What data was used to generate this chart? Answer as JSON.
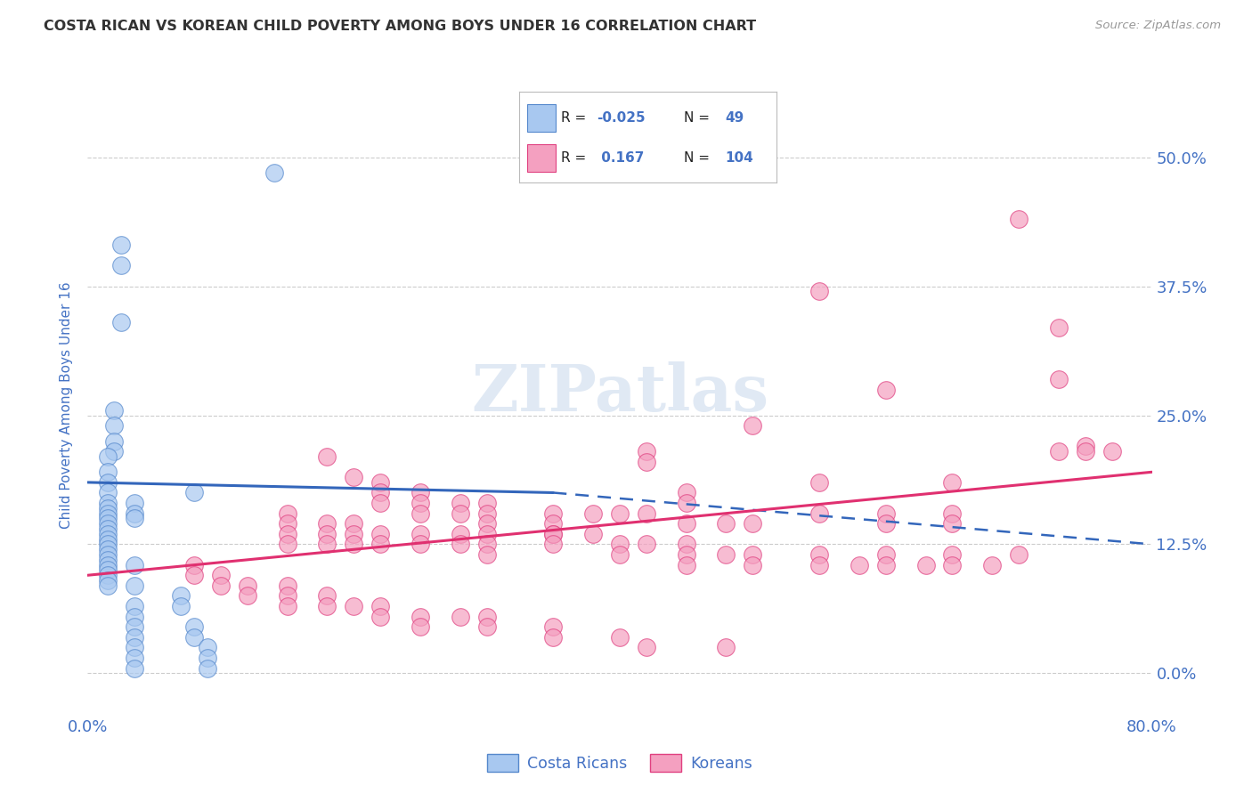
{
  "title": "COSTA RICAN VS KOREAN CHILD POVERTY AMONG BOYS UNDER 16 CORRELATION CHART",
  "source": "Source: ZipAtlas.com",
  "ylabel": "Child Poverty Among Boys Under 16",
  "ytick_labels": [
    "0.0%",
    "12.5%",
    "25.0%",
    "37.5%",
    "50.0%"
  ],
  "ytick_values": [
    0.0,
    0.125,
    0.25,
    0.375,
    0.5
  ],
  "xlim": [
    0.0,
    0.8
  ],
  "ylim": [
    -0.04,
    0.56
  ],
  "watermark": "ZIPatlas",
  "legend_blue_label": "Costa Ricans",
  "legend_pink_label": "Koreans",
  "blue_color": "#A8C8F0",
  "pink_color": "#F4A0C0",
  "blue_edge_color": "#5588CC",
  "pink_edge_color": "#E04080",
  "blue_line_color": "#3366BB",
  "pink_line_color": "#E03070",
  "blue_scatter": [
    [
      0.14,
      0.485
    ],
    [
      0.025,
      0.415
    ],
    [
      0.025,
      0.395
    ],
    [
      0.025,
      0.34
    ],
    [
      0.02,
      0.255
    ],
    [
      0.02,
      0.24
    ],
    [
      0.02,
      0.225
    ],
    [
      0.02,
      0.215
    ],
    [
      0.015,
      0.21
    ],
    [
      0.015,
      0.195
    ],
    [
      0.015,
      0.185
    ],
    [
      0.015,
      0.175
    ],
    [
      0.015,
      0.165
    ],
    [
      0.015,
      0.16
    ],
    [
      0.015,
      0.155
    ],
    [
      0.015,
      0.15
    ],
    [
      0.015,
      0.145
    ],
    [
      0.015,
      0.14
    ],
    [
      0.015,
      0.135
    ],
    [
      0.015,
      0.13
    ],
    [
      0.015,
      0.125
    ],
    [
      0.015,
      0.12
    ],
    [
      0.015,
      0.115
    ],
    [
      0.015,
      0.11
    ],
    [
      0.015,
      0.105
    ],
    [
      0.015,
      0.1
    ],
    [
      0.015,
      0.095
    ],
    [
      0.015,
      0.09
    ],
    [
      0.015,
      0.085
    ],
    [
      0.08,
      0.175
    ],
    [
      0.035,
      0.165
    ],
    [
      0.035,
      0.155
    ],
    [
      0.035,
      0.15
    ],
    [
      0.035,
      0.105
    ],
    [
      0.035,
      0.085
    ],
    [
      0.035,
      0.065
    ],
    [
      0.035,
      0.055
    ],
    [
      0.035,
      0.045
    ],
    [
      0.035,
      0.035
    ],
    [
      0.035,
      0.025
    ],
    [
      0.035,
      0.015
    ],
    [
      0.035,
      0.005
    ],
    [
      0.07,
      0.075
    ],
    [
      0.07,
      0.065
    ],
    [
      0.08,
      0.045
    ],
    [
      0.08,
      0.035
    ],
    [
      0.09,
      0.025
    ],
    [
      0.09,
      0.015
    ],
    [
      0.09,
      0.005
    ]
  ],
  "pink_scatter": [
    [
      0.55,
      0.37
    ],
    [
      0.7,
      0.44
    ],
    [
      0.73,
      0.335
    ],
    [
      0.73,
      0.285
    ],
    [
      0.6,
      0.275
    ],
    [
      0.73,
      0.215
    ],
    [
      0.75,
      0.22
    ],
    [
      0.75,
      0.215
    ],
    [
      0.77,
      0.215
    ],
    [
      0.5,
      0.24
    ],
    [
      0.42,
      0.215
    ],
    [
      0.42,
      0.205
    ],
    [
      0.55,
      0.185
    ],
    [
      0.65,
      0.185
    ],
    [
      0.45,
      0.175
    ],
    [
      0.45,
      0.165
    ],
    [
      0.18,
      0.21
    ],
    [
      0.2,
      0.19
    ],
    [
      0.22,
      0.185
    ],
    [
      0.22,
      0.175
    ],
    [
      0.22,
      0.165
    ],
    [
      0.25,
      0.175
    ],
    [
      0.25,
      0.165
    ],
    [
      0.25,
      0.155
    ],
    [
      0.28,
      0.165
    ],
    [
      0.28,
      0.155
    ],
    [
      0.3,
      0.165
    ],
    [
      0.3,
      0.155
    ],
    [
      0.3,
      0.145
    ],
    [
      0.35,
      0.155
    ],
    [
      0.35,
      0.145
    ],
    [
      0.35,
      0.135
    ],
    [
      0.38,
      0.155
    ],
    [
      0.4,
      0.155
    ],
    [
      0.42,
      0.155
    ],
    [
      0.45,
      0.145
    ],
    [
      0.48,
      0.145
    ],
    [
      0.5,
      0.145
    ],
    [
      0.55,
      0.155
    ],
    [
      0.6,
      0.155
    ],
    [
      0.6,
      0.145
    ],
    [
      0.65,
      0.155
    ],
    [
      0.65,
      0.145
    ],
    [
      0.15,
      0.155
    ],
    [
      0.15,
      0.145
    ],
    [
      0.15,
      0.135
    ],
    [
      0.15,
      0.125
    ],
    [
      0.18,
      0.145
    ],
    [
      0.18,
      0.135
    ],
    [
      0.18,
      0.125
    ],
    [
      0.2,
      0.145
    ],
    [
      0.2,
      0.135
    ],
    [
      0.2,
      0.125
    ],
    [
      0.22,
      0.135
    ],
    [
      0.22,
      0.125
    ],
    [
      0.25,
      0.135
    ],
    [
      0.25,
      0.125
    ],
    [
      0.28,
      0.135
    ],
    [
      0.28,
      0.125
    ],
    [
      0.3,
      0.135
    ],
    [
      0.3,
      0.125
    ],
    [
      0.3,
      0.115
    ],
    [
      0.35,
      0.135
    ],
    [
      0.35,
      0.125
    ],
    [
      0.38,
      0.135
    ],
    [
      0.4,
      0.125
    ],
    [
      0.4,
      0.115
    ],
    [
      0.42,
      0.125
    ],
    [
      0.45,
      0.125
    ],
    [
      0.45,
      0.115
    ],
    [
      0.45,
      0.105
    ],
    [
      0.48,
      0.115
    ],
    [
      0.5,
      0.115
    ],
    [
      0.5,
      0.105
    ],
    [
      0.55,
      0.115
    ],
    [
      0.55,
      0.105
    ],
    [
      0.58,
      0.105
    ],
    [
      0.6,
      0.115
    ],
    [
      0.6,
      0.105
    ],
    [
      0.63,
      0.105
    ],
    [
      0.65,
      0.115
    ],
    [
      0.65,
      0.105
    ],
    [
      0.68,
      0.105
    ],
    [
      0.7,
      0.115
    ],
    [
      0.08,
      0.105
    ],
    [
      0.08,
      0.095
    ],
    [
      0.1,
      0.095
    ],
    [
      0.1,
      0.085
    ],
    [
      0.12,
      0.085
    ],
    [
      0.12,
      0.075
    ],
    [
      0.15,
      0.085
    ],
    [
      0.15,
      0.075
    ],
    [
      0.15,
      0.065
    ],
    [
      0.18,
      0.075
    ],
    [
      0.18,
      0.065
    ],
    [
      0.2,
      0.065
    ],
    [
      0.22,
      0.065
    ],
    [
      0.22,
      0.055
    ],
    [
      0.25,
      0.055
    ],
    [
      0.25,
      0.045
    ],
    [
      0.28,
      0.055
    ],
    [
      0.3,
      0.055
    ],
    [
      0.3,
      0.045
    ],
    [
      0.35,
      0.045
    ],
    [
      0.35,
      0.035
    ],
    [
      0.4,
      0.035
    ],
    [
      0.42,
      0.025
    ],
    [
      0.48,
      0.025
    ]
  ],
  "blue_line_solid": {
    "x0": 0.0,
    "y0": 0.185,
    "x1": 0.35,
    "y1": 0.175
  },
  "blue_line_dash": {
    "x0": 0.35,
    "y0": 0.175,
    "x1": 0.8,
    "y1": 0.125
  },
  "pink_line": {
    "x0": 0.0,
    "y0": 0.095,
    "x1": 0.8,
    "y1": 0.195
  },
  "grid_color": "#CCCCCC",
  "bg_color": "#FFFFFF",
  "title_color": "#333333",
  "tick_label_color": "#4472C4",
  "axis_label_color": "#4472C4"
}
